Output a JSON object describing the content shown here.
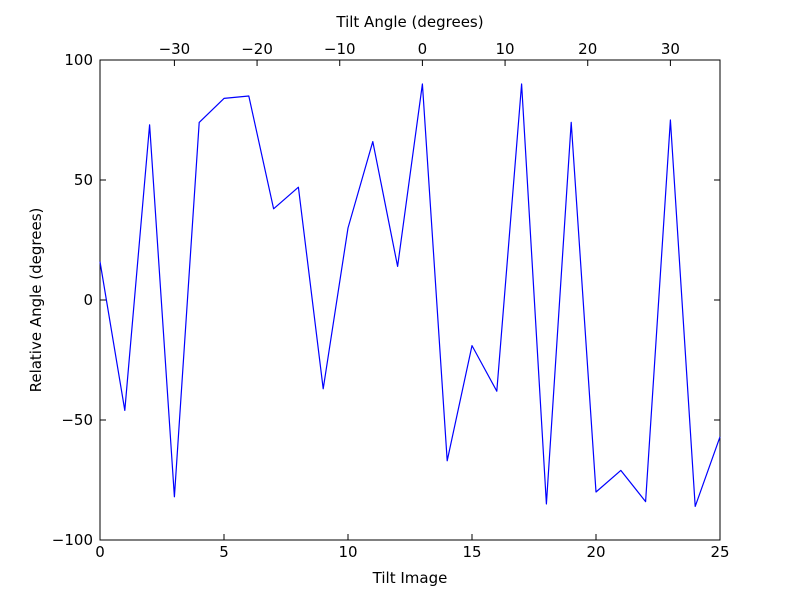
{
  "chart_data": {
    "type": "line",
    "title": "",
    "xlabel": "Tilt Image",
    "ylabel": "Relative Angle (degrees)",
    "top_axis": {
      "label": "Tilt Angle (degrees)",
      "ticks": [
        -30,
        -20,
        -10,
        0,
        10,
        20,
        30
      ],
      "lim": [
        -39,
        36
      ]
    },
    "x": [
      0,
      1,
      2,
      3,
      4,
      5,
      6,
      7,
      8,
      9,
      10,
      11,
      12,
      13,
      14,
      15,
      16,
      17,
      18,
      19,
      20,
      21,
      22,
      23,
      24,
      25
    ],
    "y": [
      16,
      -46,
      73,
      -82,
      74,
      84,
      85,
      38,
      47,
      -37,
      30,
      66,
      14,
      90,
      -67,
      -19,
      -38,
      90,
      -85,
      74,
      -80,
      -71,
      -84,
      75,
      -86,
      -57
    ],
    "xlim": [
      0,
      25
    ],
    "ylim": [
      -100,
      100
    ],
    "x_ticks": [
      0,
      5,
      10,
      15,
      20,
      25
    ],
    "y_ticks": [
      100,
      50,
      0,
      -50,
      -100
    ],
    "grid": false,
    "legend": null,
    "line_color": "#0000ff",
    "axes_color": "#000000",
    "background_color": "#ffffff"
  }
}
